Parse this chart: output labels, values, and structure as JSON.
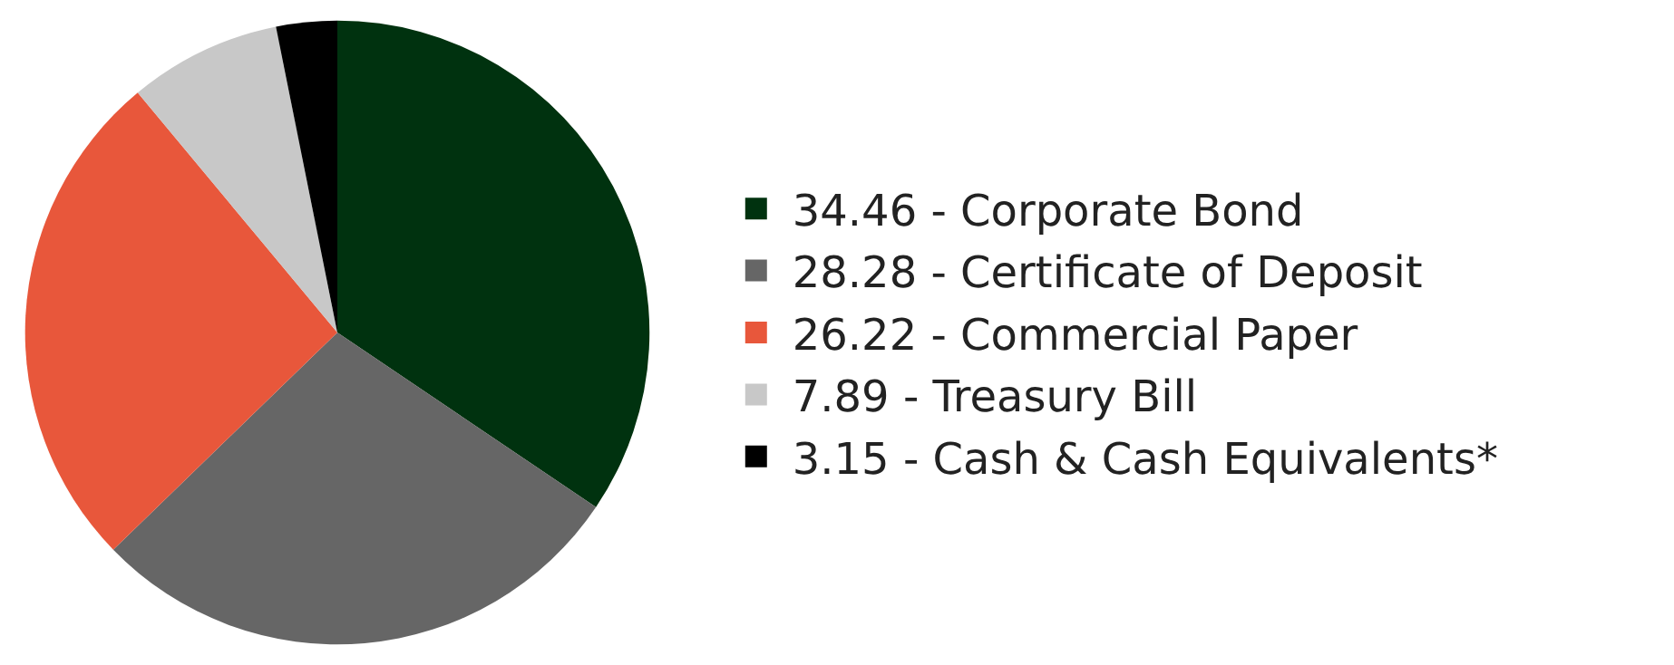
{
  "chart_data": {
    "type": "pie",
    "categories": [
      "Corporate Bond",
      "Certificate of Deposit",
      "Commercial Paper",
      "Treasury Bill",
      "Cash & Cash Equivalents*"
    ],
    "values": [
      34.46,
      28.28,
      26.22,
      7.89,
      3.15
    ],
    "value_labels": [
      "34.46",
      "28.28",
      "26.22",
      "7.89",
      "3.15"
    ],
    "colors": [
      "#00320f",
      "#666666",
      "#e8573b",
      "#c8c8c8",
      "#000000"
    ],
    "legend": "right"
  }
}
